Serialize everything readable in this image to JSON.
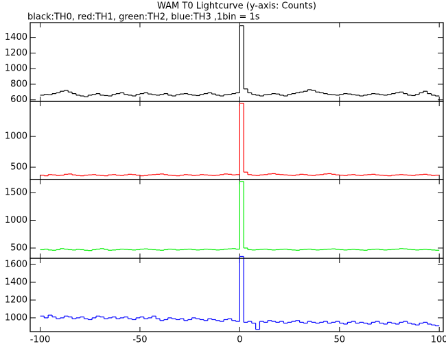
{
  "title": "WAM T0 Lightcurve (y-axis: Counts)",
  "subtitle": "black:TH0, red:TH1, green:TH2, blue:TH3 ,1bin = 1s",
  "chart_data": [
    {
      "type": "line",
      "x": [
        -100,
        -98,
        -96,
        -94,
        -92,
        -90,
        -88,
        -86,
        -84,
        -82,
        -80,
        -78,
        -76,
        -74,
        -72,
        -70,
        -68,
        -66,
        -64,
        -62,
        -60,
        -58,
        -56,
        -54,
        -52,
        -50,
        -48,
        -46,
        -44,
        -42,
        -40,
        -38,
        -36,
        -34,
        -32,
        -30,
        -28,
        -26,
        -24,
        -22,
        -20,
        -18,
        -16,
        -14,
        -12,
        -10,
        -8,
        -6,
        -4,
        -2,
        0,
        2,
        4,
        6,
        8,
        10,
        12,
        14,
        16,
        18,
        20,
        22,
        24,
        26,
        28,
        30,
        32,
        34,
        36,
        38,
        40,
        42,
        44,
        46,
        48,
        50,
        52,
        54,
        56,
        58,
        60,
        62,
        64,
        66,
        68,
        70,
        72,
        74,
        76,
        78,
        80,
        82,
        84,
        86,
        88,
        90,
        92,
        94,
        96,
        98
      ],
      "series": [
        {
          "name": "TH0",
          "color": "#000000",
          "values": [
            660,
            670,
            665,
            680,
            690,
            710,
            720,
            700,
            680,
            660,
            650,
            640,
            660,
            670,
            680,
            660,
            655,
            650,
            670,
            680,
            690,
            670,
            660,
            650,
            670,
            680,
            690,
            675,
            665,
            660,
            670,
            680,
            660,
            650,
            665,
            675,
            680,
            670,
            660,
            655,
            670,
            680,
            690,
            675,
            660,
            650,
            665,
            670,
            680,
            690,
            1550,
            740,
            690,
            670,
            660,
            650,
            665,
            670,
            680,
            675,
            660,
            650,
            670,
            680,
            690,
            700,
            710,
            730,
            720,
            700,
            690,
            680,
            670,
            665,
            660,
            670,
            680,
            675,
            665,
            660,
            650,
            660,
            670,
            680,
            675,
            665,
            660,
            670,
            680,
            690,
            700,
            680,
            660,
            655,
            670,
            690,
            710,
            680,
            660,
            650
          ]
        }
      ],
      "xlim": [
        -105,
        102
      ],
      "xticks": [
        -100,
        -50,
        0,
        50,
        100
      ],
      "ylim": [
        580,
        1590
      ],
      "yticks": [
        600,
        800,
        1000,
        1200,
        1400
      ]
    },
    {
      "type": "line",
      "x": [
        -100,
        -98,
        -96,
        -94,
        -92,
        -90,
        -88,
        -86,
        -84,
        -82,
        -80,
        -78,
        -76,
        -74,
        -72,
        -70,
        -68,
        -66,
        -64,
        -62,
        -60,
        -58,
        -56,
        -54,
        -52,
        -50,
        -48,
        -46,
        -44,
        -42,
        -40,
        -38,
        -36,
        -34,
        -32,
        -30,
        -28,
        -26,
        -24,
        -22,
        -20,
        -18,
        -16,
        -14,
        -12,
        -10,
        -8,
        -6,
        -4,
        -2,
        0,
        2,
        4,
        6,
        8,
        10,
        12,
        14,
        16,
        18,
        20,
        22,
        24,
        26,
        28,
        30,
        32,
        34,
        36,
        38,
        40,
        42,
        44,
        46,
        48,
        50,
        52,
        54,
        56,
        58,
        60,
        62,
        64,
        66,
        68,
        70,
        72,
        74,
        76,
        78,
        80,
        82,
        84,
        86,
        88,
        90,
        92,
        94,
        96,
        98
      ],
      "series": [
        {
          "name": "TH1",
          "color": "#ff0000",
          "values": [
            370,
            360,
            380,
            375,
            365,
            370,
            385,
            390,
            375,
            365,
            360,
            370,
            375,
            380,
            370,
            365,
            360,
            375,
            380,
            370,
            365,
            375,
            385,
            380,
            370,
            360,
            365,
            375,
            380,
            385,
            390,
            380,
            370,
            365,
            360,
            370,
            380,
            375,
            365,
            370,
            380,
            375,
            370,
            365,
            370,
            380,
            390,
            385,
            375,
            380,
            1540,
            420,
            380,
            370,
            365,
            375,
            380,
            390,
            395,
            385,
            380,
            375,
            370,
            365,
            375,
            385,
            380,
            370,
            365,
            375,
            380,
            390,
            395,
            385,
            375,
            370,
            365,
            375,
            380,
            370,
            365,
            375,
            380,
            385,
            375,
            370,
            365,
            360,
            370,
            375,
            380,
            375,
            370,
            365,
            375,
            380,
            385,
            375,
            365,
            370
          ]
        }
      ],
      "xlim": [
        -105,
        102
      ],
      "xticks": [
        -100,
        -50,
        0,
        50,
        100
      ],
      "ylim": [
        300,
        1570
      ],
      "yticks": [
        500,
        1000
      ]
    },
    {
      "type": "line",
      "x": [
        -100,
        -98,
        -96,
        -94,
        -92,
        -90,
        -88,
        -86,
        -84,
        -82,
        -80,
        -78,
        -76,
        -74,
        -72,
        -70,
        -68,
        -66,
        -64,
        -62,
        -60,
        -58,
        -56,
        -54,
        -52,
        -50,
        -48,
        -46,
        -44,
        -42,
        -40,
        -38,
        -36,
        -34,
        -32,
        -30,
        -28,
        -26,
        -24,
        -22,
        -20,
        -18,
        -16,
        -14,
        -12,
        -10,
        -8,
        -6,
        -4,
        -2,
        0,
        2,
        4,
        6,
        8,
        10,
        12,
        14,
        16,
        18,
        20,
        22,
        24,
        26,
        28,
        30,
        32,
        34,
        36,
        38,
        40,
        42,
        44,
        46,
        48,
        50,
        52,
        54,
        56,
        58,
        60,
        62,
        64,
        66,
        68,
        70,
        72,
        74,
        76,
        78,
        80,
        82,
        84,
        86,
        88,
        90,
        92,
        94,
        96,
        98
      ],
      "series": [
        {
          "name": "TH2",
          "color": "#00ee00",
          "values": [
            470,
            480,
            465,
            460,
            470,
            490,
            480,
            470,
            465,
            475,
            470,
            460,
            455,
            470,
            480,
            490,
            475,
            460,
            465,
            470,
            480,
            475,
            470,
            465,
            470,
            480,
            485,
            475,
            470,
            465,
            460,
            470,
            480,
            475,
            465,
            470,
            475,
            480,
            470,
            465,
            470,
            480,
            475,
            470,
            465,
            470,
            480,
            485,
            490,
            480,
            1700,
            500,
            470,
            465,
            470,
            475,
            480,
            470,
            465,
            470,
            475,
            480,
            470,
            465,
            460,
            470,
            475,
            480,
            470,
            465,
            470,
            475,
            480,
            485,
            475,
            470,
            465,
            470,
            475,
            470,
            465,
            460,
            470,
            475,
            480,
            470,
            465,
            470,
            475,
            480,
            490,
            485,
            475,
            470,
            465,
            470,
            475,
            470,
            465,
            460
          ]
        }
      ],
      "xlim": [
        -105,
        102
      ],
      "xticks": [
        -100,
        -50,
        0,
        50,
        100
      ],
      "ylim": [
        315,
        1735
      ],
      "yticks": [
        500,
        1000,
        1500
      ]
    },
    {
      "type": "line",
      "x": [
        -100,
        -98,
        -96,
        -94,
        -92,
        -90,
        -88,
        -86,
        -84,
        -82,
        -80,
        -78,
        -76,
        -74,
        -72,
        -70,
        -68,
        -66,
        -64,
        -62,
        -60,
        -58,
        -56,
        -54,
        -52,
        -50,
        -48,
        -46,
        -44,
        -42,
        -40,
        -38,
        -36,
        -34,
        -32,
        -30,
        -28,
        -26,
        -24,
        -22,
        -20,
        -18,
        -16,
        -14,
        -12,
        -10,
        -8,
        -6,
        -4,
        -2,
        0,
        2,
        4,
        6,
        8,
        10,
        12,
        14,
        16,
        18,
        20,
        22,
        24,
        26,
        28,
        30,
        32,
        34,
        36,
        38,
        40,
        42,
        44,
        46,
        48,
        50,
        52,
        54,
        56,
        58,
        60,
        62,
        64,
        66,
        68,
        70,
        72,
        74,
        76,
        78,
        80,
        82,
        84,
        86,
        88,
        90,
        92,
        94,
        96,
        98
      ],
      "series": [
        {
          "name": "TH3",
          "color": "#0000ff",
          "values": [
            1020,
            1000,
            1030,
            1010,
            990,
            1000,
            1020,
            1010,
            990,
            1000,
            1010,
            990,
            980,
            1000,
            1020,
            1010,
            990,
            1000,
            1010,
            990,
            1000,
            1010,
            990,
            980,
            1000,
            1010,
            990,
            1000,
            1020,
            990,
            970,
            980,
            1000,
            990,
            980,
            990,
            970,
            980,
            1000,
            990,
            980,
            970,
            990,
            980,
            970,
            960,
            980,
            990,
            970,
            960,
            1690,
            950,
            960,
            940,
            870,
            960,
            950,
            970,
            960,
            950,
            960,
            940,
            950,
            960,
            970,
            950,
            940,
            960,
            950,
            940,
            950,
            960,
            940,
            950,
            960,
            940,
            930,
            950,
            960,
            940,
            950,
            940,
            930,
            950,
            960,
            940,
            930,
            950,
            940,
            930,
            950,
            960,
            940,
            930,
            920,
            940,
            950,
            930,
            920,
            910
          ]
        }
      ],
      "xlim": [
        -105,
        102
      ],
      "xticks": [
        -100,
        -50,
        0,
        50,
        100
      ],
      "ylim": [
        845,
        1670
      ],
      "yticks": [
        1000,
        1200,
        1400,
        1600
      ]
    }
  ]
}
